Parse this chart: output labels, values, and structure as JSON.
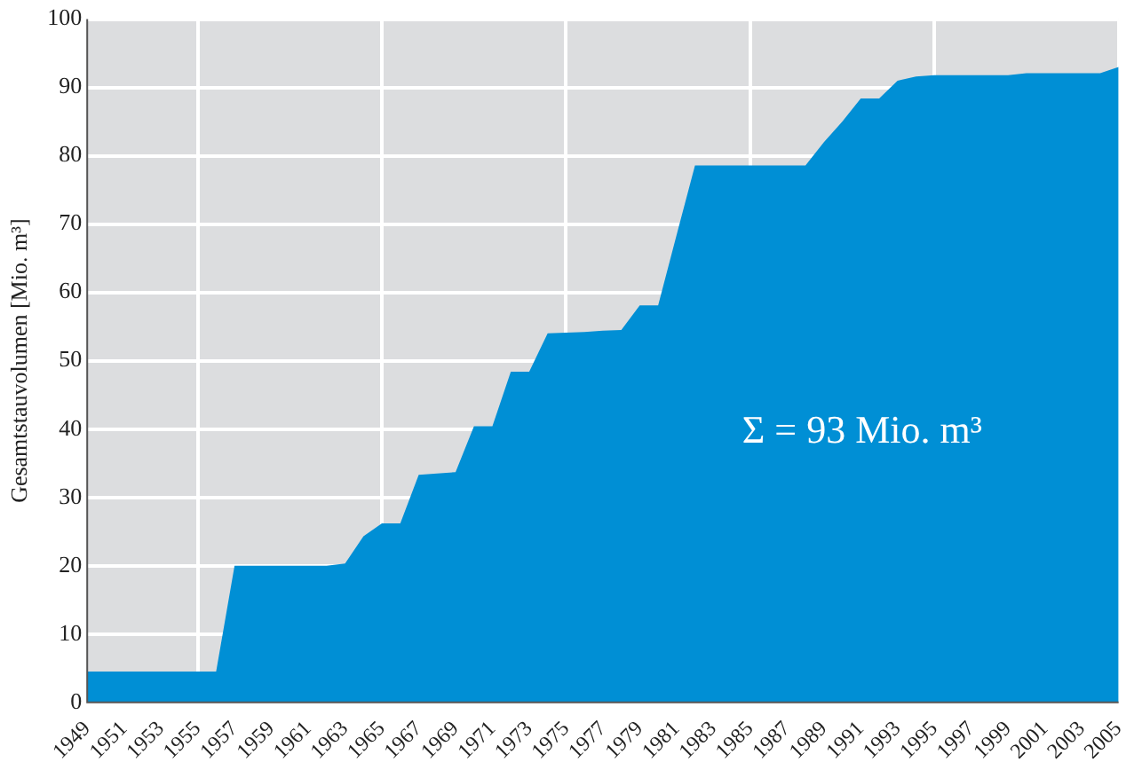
{
  "chart_data": {
    "type": "area",
    "ylabel": "Gesamtstauvolumen [Mio. m³]",
    "x": [
      1949,
      1950,
      1951,
      1952,
      1953,
      1954,
      1955,
      1956,
      1957,
      1958,
      1959,
      1960,
      1961,
      1962,
      1963,
      1964,
      1965,
      1966,
      1967,
      1968,
      1969,
      1970,
      1971,
      1972,
      1973,
      1974,
      1975,
      1976,
      1977,
      1978,
      1979,
      1980,
      1981,
      1982,
      1983,
      1984,
      1985,
      1986,
      1987,
      1988,
      1989,
      1990,
      1991,
      1992,
      1993,
      1994,
      1995,
      1996,
      1997,
      1998,
      1999,
      2000,
      2001,
      2002,
      2003,
      2004,
      2005
    ],
    "values": [
      4.5,
      4.5,
      4.5,
      4.5,
      4.5,
      4.5,
      4.5,
      4.5,
      20,
      20,
      20,
      20,
      20,
      20,
      20.3,
      24.3,
      26.2,
      26.2,
      33.3,
      33.5,
      33.7,
      40.4,
      40.4,
      48.4,
      48.4,
      54,
      54.1,
      54.2,
      54.4,
      54.5,
      58.1,
      58.1,
      68.4,
      78.6,
      78.6,
      78.6,
      78.6,
      78.6,
      78.6,
      78.6,
      82,
      85,
      88.4,
      88.4,
      91,
      91.6,
      91.8,
      91.8,
      91.8,
      91.8,
      91.8,
      92.1,
      92.1,
      92.1,
      92.1,
      92.1,
      93
    ],
    "color": "#008fd5",
    "xlim": [
      1949,
      2005
    ],
    "xticks": [
      1949,
      1951,
      1953,
      1955,
      1957,
      1959,
      1961,
      1963,
      1965,
      1967,
      1969,
      1971,
      1973,
      1975,
      1977,
      1979,
      1981,
      1983,
      1985,
      1987,
      1989,
      1991,
      1993,
      1995,
      1997,
      1999,
      2001,
      2003,
      2005
    ],
    "ylim": [
      0,
      100
    ],
    "yticks": [
      0,
      10,
      20,
      30,
      40,
      50,
      60,
      70,
      80,
      90,
      100
    ],
    "grid": true,
    "annotations": [
      "Σ = 93 Mio. m³"
    ]
  }
}
